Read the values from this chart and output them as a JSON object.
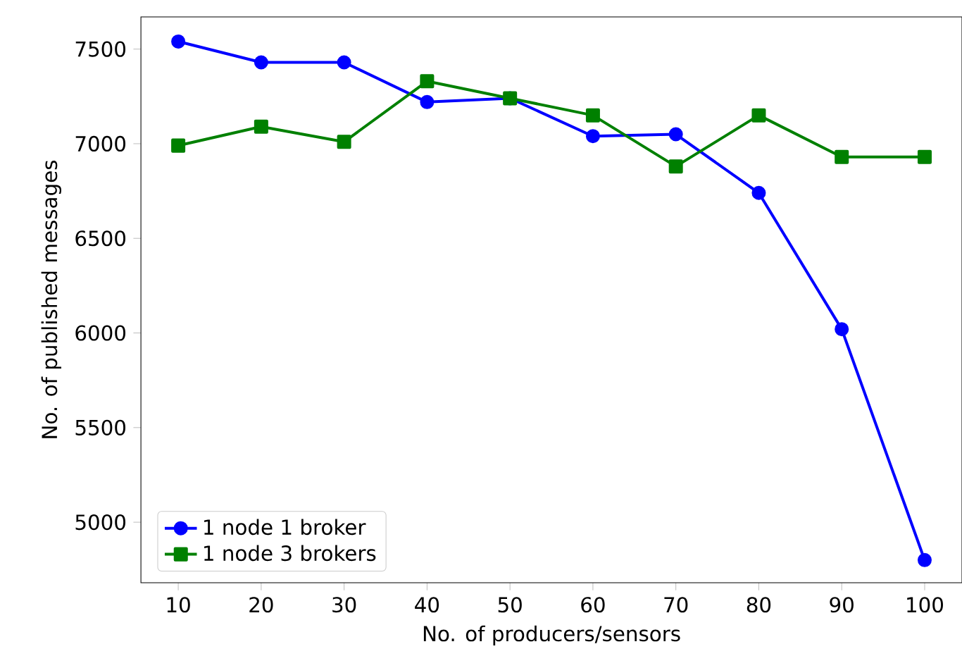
{
  "chart_data": {
    "type": "line",
    "xlabel": "No. of producers/sensors",
    "ylabel": "No. of published messages",
    "x": [
      10,
      20,
      30,
      40,
      50,
      60,
      70,
      80,
      90,
      100
    ],
    "series": [
      {
        "name": "1 node 1 broker",
        "color": "#0000ff",
        "marker": "circle",
        "values": [
          7540,
          7430,
          7430,
          7220,
          7240,
          7040,
          7050,
          6740,
          6020,
          4800
        ]
      },
      {
        "name": "1 node 3 brokers",
        "color": "#008000",
        "marker": "square",
        "values": [
          6990,
          7090,
          7010,
          7330,
          7240,
          7150,
          6880,
          7150,
          6930,
          6930
        ]
      }
    ],
    "xlim": [
      5.5,
      104.5
    ],
    "ylim": [
      4680,
      7670
    ],
    "xticks": [
      10,
      20,
      30,
      40,
      50,
      60,
      70,
      80,
      90,
      100
    ],
    "yticks": [
      5000,
      5500,
      6000,
      6500,
      7000,
      7500
    ],
    "legend": "bottom left",
    "line_style": "solid"
  }
}
